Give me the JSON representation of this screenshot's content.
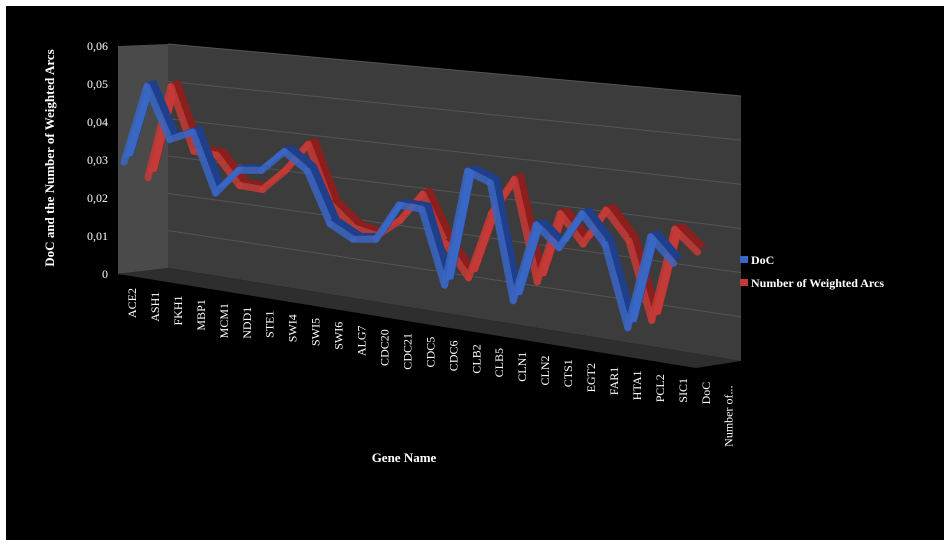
{
  "chart_data": {
    "type": "line",
    "style": "3d-ribbon",
    "background": "#000000",
    "wall_color": "#3c3c3c",
    "xlabel": "Gene Name",
    "ylabel": "DoC and the Number of Weighted Arcs",
    "ylim": [
      0,
      0.06
    ],
    "yticks": [
      "0",
      "0,01",
      "0,02",
      "0,03",
      "0,04",
      "0,05",
      "0,06"
    ],
    "categories": [
      "ACE2",
      "ASH1",
      "FKH1",
      "MBP1",
      "MCM1",
      "NDD1",
      "STE1",
      "SWI4",
      "SWI5",
      "SWI6",
      "ALG7",
      "CDC20",
      "CDC21",
      "CDC5",
      "CDC6",
      "CLB2",
      "CLB5",
      "CLN1",
      "CLN2",
      "CTS1",
      "EGT2",
      "FAR1",
      "HTA1",
      "PCL2",
      "SIC1"
    ],
    "depth_labels": [
      "DoC",
      "Number of..."
    ],
    "legend_position": "right",
    "series": [
      {
        "name": "DoC",
        "color": "#3a66c4",
        "values": [
          0.031,
          0.052,
          0.039,
          0.042,
          0.027,
          0.034,
          0.035,
          0.041,
          0.037,
          0.024,
          0.021,
          0.022,
          0.032,
          0.032,
          0.013,
          0.044,
          0.042,
          0.012,
          0.033,
          0.028,
          0.038,
          0.031,
          0.01,
          0.035,
          0.029
        ]
      },
      {
        "name": "Number of Weighted Arcs",
        "color": "#c43a36",
        "values": [
          0.028,
          0.053,
          0.037,
          0.037,
          0.03,
          0.03,
          0.036,
          0.044,
          0.029,
          0.024,
          0.023,
          0.028,
          0.036,
          0.024,
          0.016,
          0.034,
          0.044,
          0.018,
          0.037,
          0.03,
          0.04,
          0.033,
          0.013,
          0.038,
          0.033
        ]
      }
    ]
  }
}
